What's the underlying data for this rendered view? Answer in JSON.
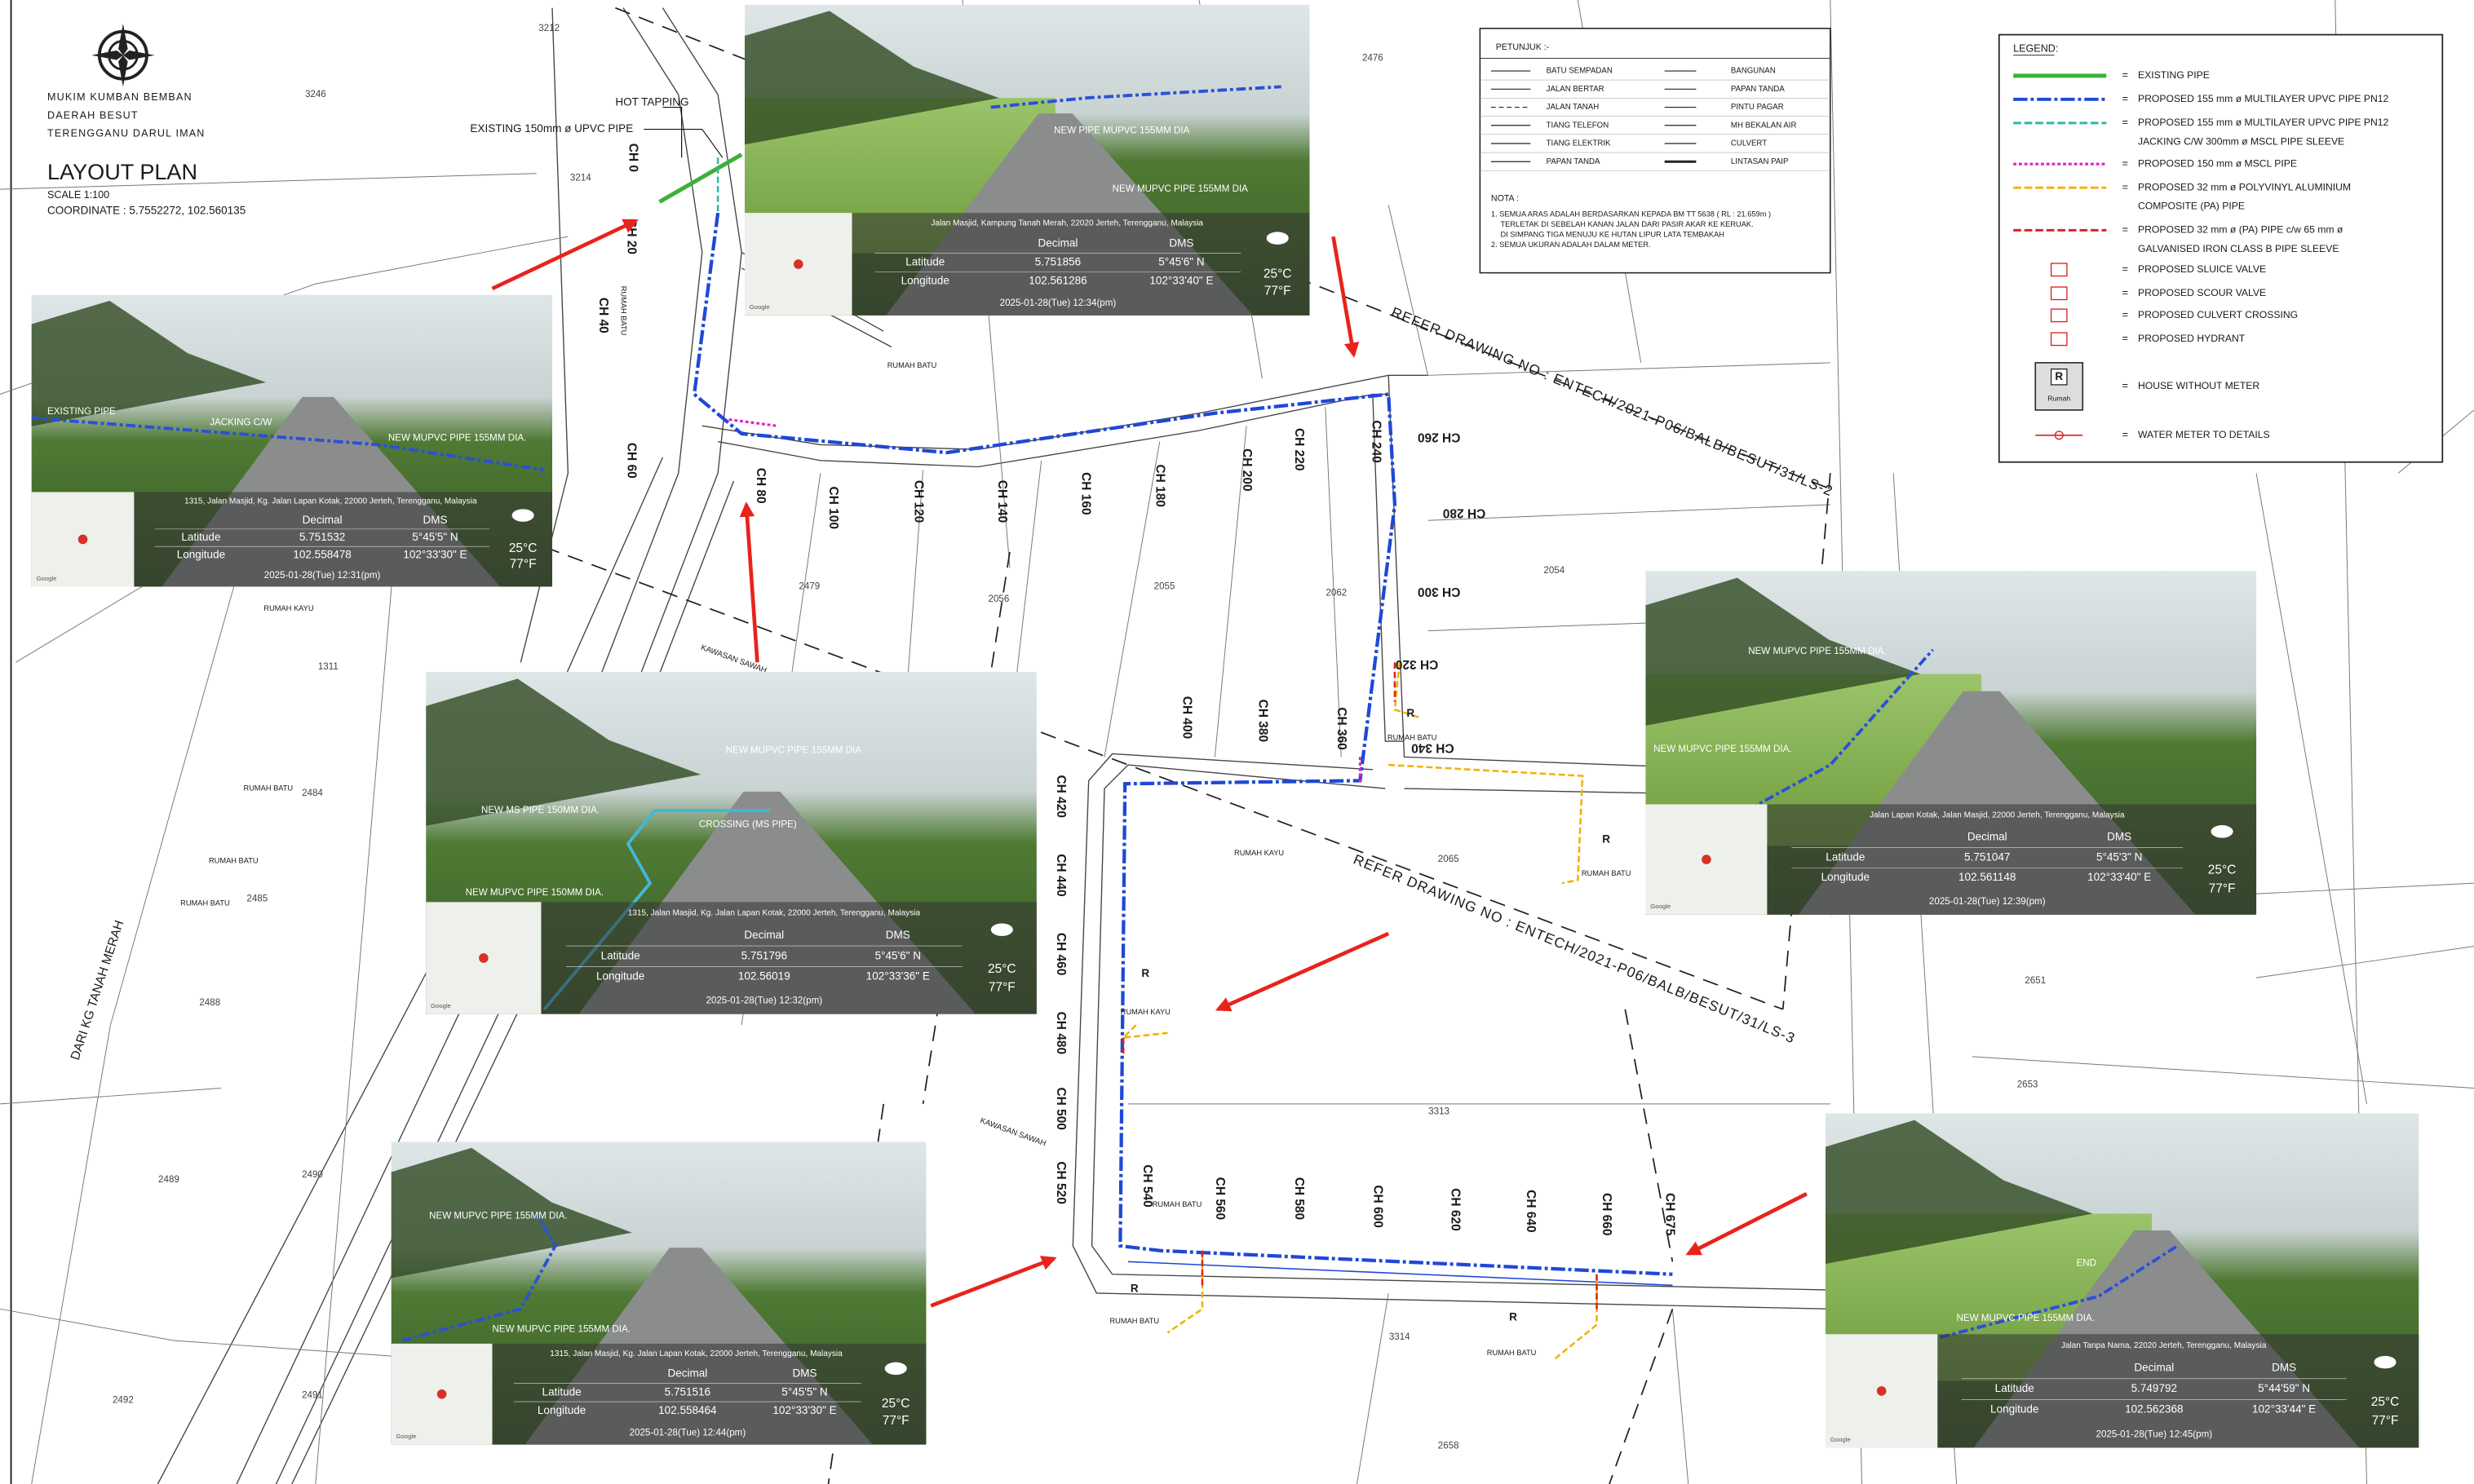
{
  "header": {
    "district": [
      "MUKIM KUMBAN BEMBAN",
      "DAERAH BESUT",
      "TERENGGANU DARUL IMAN"
    ],
    "title": "LAYOUT PLAN",
    "scale": "SCALE 1:100",
    "coordinate": "COORDINATE : 5.7552272, 102.560135"
  },
  "annotations": {
    "hot_tapping": "HOT TAPPING",
    "existing_pipe": "EXISTING 150mm ø UPVC PIPE",
    "refer_1": "REFER DRAWING NO : ENTECH/2021-P06/BALB/BESUT/31/LS-2",
    "refer_2": "REFER DRAWING NO : ENTECH/2021-P06/BALB/BESUT/31/LS-3",
    "road_name": "DARI KG TANAH MERAH",
    "field": "KAWASAN SAWAH",
    "house_mark": "R"
  },
  "chainages": [
    "CH 0",
    "CH 20",
    "CH 40",
    "CH 60",
    "CH 80",
    "CH 100",
    "CH 120",
    "CH 140",
    "CH 160",
    "CH 180",
    "CH 200",
    "CH 220",
    "CH 240",
    "CH 260",
    "CH 280",
    "CH 300",
    "CH 320",
    "CH 340",
    "CH 360",
    "CH 380",
    "CH 400",
    "CH 420",
    "CH 440",
    "CH 460",
    "CH 480",
    "CH 500",
    "CH 520",
    "CH 540",
    "CH 560",
    "CH 580",
    "CH 600",
    "CH 620",
    "CH 640",
    "CH 660",
    "CH 675"
  ],
  "lots": [
    "3212",
    "3246",
    "2476",
    "3214",
    "2479",
    "2056",
    "2055",
    "2062",
    "2054",
    "1311",
    "2484",
    "2485",
    "2488",
    "2489",
    "2490",
    "2491",
    "2492",
    "2065",
    "2651",
    "2653",
    "3313",
    "3314",
    "2658"
  ],
  "buildings": [
    "RUMAH BATU",
    "RUMAH KAYU"
  ],
  "petunjuk": {
    "title": "PETUNJUK :-",
    "left": [
      "BATU SEMPADAN",
      "JALAN BERTAR",
      "JALAN TANAH",
      "TIANG TELEFON",
      "TIANG ELEKTRIK",
      "PAPAN TANDA"
    ],
    "right": [
      "BANGUNAN",
      "PAPAN TANDA",
      "PINTU PAGAR",
      "MH BEKALAN AIR",
      "CULVERT",
      "LINTASAN PAIP"
    ],
    "nota_title": "NOTA :",
    "notes": [
      [
        "1. SEMUA ARAS ADALAH BERDASARKAN KEPADA BM TT 5638 ( RL : 21.659m )",
        "TERLETAK DI SEBELAH KANAN JALAN DARI PASIR AKAR KE KERUAK.",
        "DI SIMPANG TIGA MENUJU KE HUTAN LIPUR LATA TEMBAKAH"
      ],
      [
        "2. SEMUA UKURAN ADALAH DALAM METER."
      ]
    ]
  },
  "legend": {
    "title": "LEGEND:",
    "separator": "=",
    "house_icon": "Rumah",
    "items": [
      [
        "EXISTING PIPE"
      ],
      [
        "PROPOSED 155 mm ø MULTILAYER UPVC PIPE PN12"
      ],
      [
        "PROPOSED 155 mm ø MULTILAYER UPVC PIPE PN12",
        "JACKING C/W 300mm ø MSCL PIPE SLEEVE"
      ],
      [
        "PROPOSED 150 mm ø MSCL PIPE"
      ],
      [
        "PROPOSED 32 mm ø POLYVINYL ALUMINIUM",
        "COMPOSITE (PA) PIPE"
      ],
      [
        "PROPOSED 32 mm ø (PA) PIPE c/w 65 mm ø",
        "GALVANISED IRON CLASS B PIPE SLEEVE"
      ],
      [
        "PROPOSED SLUICE VALVE"
      ],
      [
        "PROPOSED SCOUR VALVE"
      ],
      [
        "PROPOSED CULVERT CROSSING"
      ],
      [
        "PROPOSED HYDRANT"
      ],
      [
        "HOUSE WITHOUT METER"
      ],
      [
        "WATER METER TO DETAILS"
      ]
    ]
  },
  "photo_table": {
    "header": [
      "Decimal",
      "DMS"
    ],
    "row_labels": [
      "Latitude",
      "Longitude"
    ],
    "temperature": [
      "25°C",
      "77°F"
    ],
    "map_brand": "Google"
  },
  "photos": [
    {
      "captions": [
        "NEW PIPE MUPVC 155MM DIA",
        "NEW MUPVC PIPE 155MM DIA"
      ],
      "address": "Jalan Masjid, Kampung Tanah Merah, 22020 Jerteh, Terengganu, Malaysia",
      "latitude": [
        "5.751856",
        "5°45'6\" N"
      ],
      "longitude": [
        "102.561286",
        "102°33'40\" E"
      ],
      "timestamp": "2025-01-28(Tue)  12:34(pm)"
    },
    {
      "captions": [
        "EXISTING PIPE",
        "JACKING C/W",
        "NEW MUPVC PIPE 155MM DIA."
      ],
      "address": "1315, Jalan Masjid, Kg. Jalan Lapan Kotak, 22000 Jerteh, Terengganu, Malaysia",
      "latitude": [
        "5.751532",
        "5°45'5\" N"
      ],
      "longitude": [
        "102.558478",
        "102°33'30\" E"
      ],
      "timestamp": "2025-01-28(Tue)  12:31(pm)"
    },
    {
      "captions": [
        "NEW MUPVC PIPE 155MM DIA",
        "NEW MS PIPE 150MM DIA.",
        "CROSSING (MS PIPE)",
        "NEW MUPVC PIPE 150MM DIA."
      ],
      "address": "1315, Jalan Masjid, Kg. Jalan Lapan Kotak, 22000 Jerteh, Terengganu, Malaysia",
      "latitude": [
        "5.751796",
        "5°45'6\" N"
      ],
      "longitude": [
        "102.56019",
        "102°33'36\" E"
      ],
      "timestamp": "2025-01-28(Tue)  12:32(pm)"
    },
    {
      "captions": [
        "NEW MUPVC PIPE 155MM DIA.",
        "NEW MUPVC PIPE 155MM DIA."
      ],
      "address": "Jalan Lapan Kotak, Jalan Masjid, 22000 Jerteh, Terengganu, Malaysia",
      "latitude": [
        "5.751047",
        "5°45'3\" N"
      ],
      "longitude": [
        "102.561148",
        "102°33'40\" E"
      ],
      "timestamp": "2025-01-28(Tue)  12:39(pm)"
    },
    {
      "captions": [
        "NEW MUPVC PIPE 155MM DIA.",
        "NEW MUPVC PIPE 155MM DIA."
      ],
      "address": "1315, Jalan Masjid, Kg. Jalan Lapan Kotak, 22000 Jerteh, Terengganu, Malaysia",
      "latitude": [
        "5.751516",
        "5°45'5\" N"
      ],
      "longitude": [
        "102.558464",
        "102°33'30\" E"
      ],
      "timestamp": "2025-01-28(Tue)  12:44(pm)"
    },
    {
      "captions": [
        "END",
        "NEW MUPVC PIPE 155MM DIA."
      ],
      "address": "Jalan Tanpa Nama, 22020 Jerteh, Terengganu, Malaysia",
      "latitude": [
        "5.749792",
        "5°44'59\" N"
      ],
      "longitude": [
        "102.562368",
        "102°33'44\" E"
      ],
      "timestamp": "2025-01-28(Tue)  12:45(pm)"
    }
  ]
}
